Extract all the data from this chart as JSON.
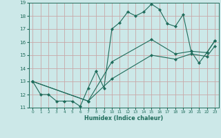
{
  "xlabel": "Humidex (Indice chaleur)",
  "xlim": [
    -0.5,
    23.5
  ],
  "ylim": [
    11,
    19
  ],
  "xticks": [
    0,
    1,
    2,
    3,
    4,
    5,
    6,
    7,
    8,
    9,
    10,
    11,
    12,
    13,
    14,
    15,
    16,
    17,
    18,
    19,
    20,
    21,
    22,
    23
  ],
  "yticks": [
    11,
    12,
    13,
    14,
    15,
    16,
    17,
    18,
    19
  ],
  "bg_color": "#cce8e8",
  "grid_color": "#c8a8a8",
  "line_color": "#1e6b5a",
  "line1_x": [
    0,
    1,
    2,
    3,
    4,
    5,
    6,
    7,
    8,
    9,
    10,
    11,
    12,
    13,
    14,
    15,
    16,
    17,
    18,
    19,
    20,
    21,
    22,
    23
  ],
  "line1_y": [
    13.0,
    12.0,
    12.0,
    11.5,
    11.5,
    11.5,
    11.1,
    12.5,
    13.8,
    12.5,
    17.0,
    17.5,
    18.3,
    18.0,
    18.3,
    18.9,
    18.5,
    17.4,
    17.2,
    18.1,
    15.3,
    14.4,
    15.2,
    16.1
  ],
  "line2_x": [
    0,
    7,
    10,
    15,
    18,
    20,
    22,
    23
  ],
  "line2_y": [
    13.0,
    11.5,
    14.5,
    16.2,
    15.1,
    15.3,
    15.2,
    16.1
  ],
  "line3_x": [
    0,
    7,
    10,
    15,
    18,
    20,
    22,
    23
  ],
  "line3_y": [
    13.0,
    11.5,
    13.2,
    15.0,
    14.7,
    15.1,
    14.9,
    15.7
  ]
}
